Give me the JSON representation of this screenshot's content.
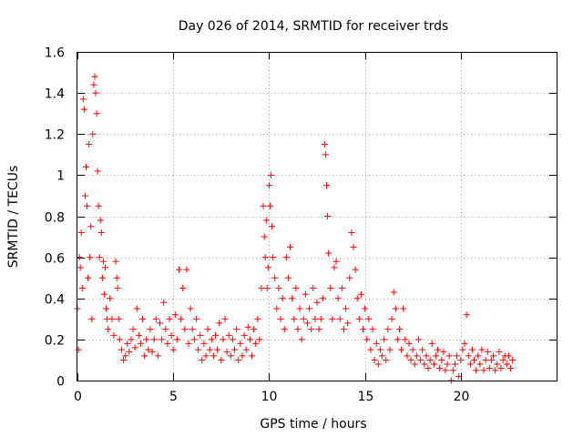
{
  "chart_data": {
    "type": "scatter",
    "title": "Day 026 of 2014, SRMTID for receiver trds",
    "xlabel": "GPS time / hours",
    "ylabel": "SRMTID / TECUs",
    "xlim": [
      0,
      25
    ],
    "ylim": [
      0,
      1.6
    ],
    "xticks": [
      {
        "value": 0,
        "label": "0"
      },
      {
        "value": 5,
        "label": "5"
      },
      {
        "value": 10,
        "label": "10"
      },
      {
        "value": 15,
        "label": "15"
      },
      {
        "value": 20,
        "label": "20"
      }
    ],
    "yticks": [
      {
        "value": 0,
        "label": "0"
      },
      {
        "value": 0.2,
        "label": "0.2"
      },
      {
        "value": 0.4,
        "label": "0.4"
      },
      {
        "value": 0.6,
        "label": "0.6"
      },
      {
        "value": 0.8,
        "label": "0.8"
      },
      {
        "value": 1.0,
        "label": "1"
      },
      {
        "value": 1.2,
        "label": "1.2"
      },
      {
        "value": 1.4,
        "label": "1.4"
      },
      {
        "value": 1.6,
        "label": "1.6"
      }
    ],
    "grid": true,
    "series": [
      {
        "name": "SRMTID",
        "marker": "+",
        "color": "#ff0000",
        "points": [
          [
            0.0,
            0.35
          ],
          [
            0.05,
            0.15
          ],
          [
            0.1,
            0.6
          ],
          [
            0.15,
            0.55
          ],
          [
            0.2,
            0.72
          ],
          [
            0.25,
            0.45
          ],
          [
            0.3,
            1.37
          ],
          [
            0.35,
            1.32
          ],
          [
            0.4,
            0.9
          ],
          [
            0.45,
            1.04
          ],
          [
            0.5,
            0.85
          ],
          [
            0.55,
            0.5
          ],
          [
            0.6,
            1.15
          ],
          [
            0.65,
            0.6
          ],
          [
            0.7,
            0.75
          ],
          [
            0.75,
            0.3
          ],
          [
            0.8,
            1.2
          ],
          [
            0.85,
            1.44
          ],
          [
            0.9,
            1.48
          ],
          [
            0.95,
            1.4
          ],
          [
            1.0,
            1.3
          ],
          [
            1.05,
            1.02
          ],
          [
            1.1,
            0.85
          ],
          [
            1.15,
            0.6
          ],
          [
            1.2,
            0.78
          ],
          [
            1.25,
            0.72
          ],
          [
            1.3,
            0.5
          ],
          [
            1.35,
            0.58
          ],
          [
            1.4,
            0.42
          ],
          [
            1.45,
            0.55
          ],
          [
            1.5,
            0.35
          ],
          [
            1.55,
            0.3
          ],
          [
            1.6,
            0.25
          ],
          [
            1.7,
            0.4
          ],
          [
            1.8,
            0.3
          ],
          [
            1.9,
            0.22
          ],
          [
            2.0,
            0.58
          ],
          [
            2.05,
            0.5
          ],
          [
            2.1,
            0.45
          ],
          [
            2.15,
            0.3
          ],
          [
            2.2,
            0.2
          ],
          [
            2.3,
            0.15
          ],
          [
            2.4,
            0.1
          ],
          [
            2.5,
            0.12
          ],
          [
            2.6,
            0.18
          ],
          [
            2.7,
            0.14
          ],
          [
            2.8,
            0.2
          ],
          [
            2.9,
            0.25
          ],
          [
            3.0,
            0.16
          ],
          [
            3.1,
            0.35
          ],
          [
            3.2,
            0.22
          ],
          [
            3.3,
            0.18
          ],
          [
            3.4,
            0.3
          ],
          [
            3.5,
            0.12
          ],
          [
            3.6,
            0.2
          ],
          [
            3.7,
            0.15
          ],
          [
            3.8,
            0.25
          ],
          [
            3.9,
            0.14
          ],
          [
            4.0,
            0.2
          ],
          [
            4.1,
            0.3
          ],
          [
            4.2,
            0.12
          ],
          [
            4.3,
            0.28
          ],
          [
            4.4,
            0.2
          ],
          [
            4.5,
            0.38
          ],
          [
            4.6,
            0.25
          ],
          [
            4.7,
            0.18
          ],
          [
            4.8,
            0.3
          ],
          [
            4.9,
            0.22
          ],
          [
            5.0,
            0.15
          ],
          [
            5.1,
            0.32
          ],
          [
            5.2,
            0.2
          ],
          [
            5.3,
            0.54
          ],
          [
            5.4,
            0.3
          ],
          [
            5.5,
            0.45
          ],
          [
            5.6,
            0.25
          ],
          [
            5.7,
            0.54
          ],
          [
            5.8,
            0.18
          ],
          [
            5.9,
            0.35
          ],
          [
            6.0,
            0.25
          ],
          [
            6.1,
            0.2
          ],
          [
            6.2,
            0.3
          ],
          [
            6.3,
            0.15
          ],
          [
            6.4,
            0.22
          ],
          [
            6.5,
            0.1
          ],
          [
            6.6,
            0.18
          ],
          [
            6.7,
            0.12
          ],
          [
            6.8,
            0.25
          ],
          [
            6.9,
            0.15
          ],
          [
            7.0,
            0.2
          ],
          [
            7.1,
            0.12
          ],
          [
            7.2,
            0.22
          ],
          [
            7.3,
            0.15
          ],
          [
            7.4,
            0.28
          ],
          [
            7.5,
            0.1
          ],
          [
            7.6,
            0.2
          ],
          [
            7.7,
            0.3
          ],
          [
            7.8,
            0.14
          ],
          [
            7.9,
            0.22
          ],
          [
            8.0,
            0.12
          ],
          [
            8.1,
            0.2
          ],
          [
            8.2,
            0.15
          ],
          [
            8.3,
            0.25
          ],
          [
            8.4,
            0.1
          ],
          [
            8.5,
            0.18
          ],
          [
            8.6,
            0.12
          ],
          [
            8.7,
            0.22
          ],
          [
            8.8,
            0.15
          ],
          [
            8.9,
            0.26
          ],
          [
            9.0,
            0.2
          ],
          [
            9.1,
            0.12
          ],
          [
            9.2,
            0.25
          ],
          [
            9.3,
            0.18
          ],
          [
            9.4,
            0.3
          ],
          [
            9.5,
            0.2
          ],
          [
            9.6,
            0.45
          ],
          [
            9.7,
            0.85
          ],
          [
            9.75,
            0.7
          ],
          [
            9.8,
            0.6
          ],
          [
            9.85,
            0.78
          ],
          [
            9.9,
            0.45
          ],
          [
            9.95,
            0.55
          ],
          [
            10.0,
            0.95
          ],
          [
            10.05,
            0.85
          ],
          [
            10.1,
            1.0
          ],
          [
            10.15,
            0.75
          ],
          [
            10.2,
            0.6
          ],
          [
            10.3,
            0.5
          ],
          [
            10.4,
            0.35
          ],
          [
            10.5,
            0.45
          ],
          [
            10.6,
            0.3
          ],
          [
            10.7,
            0.4
          ],
          [
            10.8,
            0.25
          ],
          [
            10.9,
            0.6
          ],
          [
            11.0,
            0.5
          ],
          [
            11.1,
            0.65
          ],
          [
            11.2,
            0.4
          ],
          [
            11.3,
            0.3
          ],
          [
            11.4,
            0.45
          ],
          [
            11.5,
            0.25
          ],
          [
            11.6,
            0.35
          ],
          [
            11.7,
            0.2
          ],
          [
            11.8,
            0.3
          ],
          [
            11.9,
            0.42
          ],
          [
            12.0,
            0.28
          ],
          [
            12.1,
            0.35
          ],
          [
            12.2,
            0.25
          ],
          [
            12.3,
            0.45
          ],
          [
            12.4,
            0.3
          ],
          [
            12.5,
            0.38
          ],
          [
            12.6,
            0.25
          ],
          [
            12.7,
            0.3
          ],
          [
            12.8,
            0.4
          ],
          [
            12.9,
            1.15
          ],
          [
            12.95,
            1.1
          ],
          [
            13.0,
            0.95
          ],
          [
            13.05,
            0.8
          ],
          [
            13.1,
            0.62
          ],
          [
            13.2,
            0.45
          ],
          [
            13.3,
            0.3
          ],
          [
            13.4,
            0.55
          ],
          [
            13.5,
            0.58
          ],
          [
            13.6,
            0.4
          ],
          [
            13.7,
            0.3
          ],
          [
            13.8,
            0.45
          ],
          [
            13.9,
            0.25
          ],
          [
            14.0,
            0.35
          ],
          [
            14.1,
            0.28
          ],
          [
            14.2,
            0.5
          ],
          [
            14.3,
            0.72
          ],
          [
            14.4,
            0.65
          ],
          [
            14.5,
            0.54
          ],
          [
            14.6,
            0.4
          ],
          [
            14.7,
            0.3
          ],
          [
            14.8,
            0.42
          ],
          [
            14.9,
            0.25
          ],
          [
            15.0,
            0.35
          ],
          [
            15.1,
            0.2
          ],
          [
            15.2,
            0.3
          ],
          [
            15.3,
            0.15
          ],
          [
            15.4,
            0.25
          ],
          [
            15.5,
            0.1
          ],
          [
            15.6,
            0.18
          ],
          [
            15.7,
            0.08
          ],
          [
            15.8,
            0.15
          ],
          [
            15.9,
            0.12
          ],
          [
            16.0,
            0.2
          ],
          [
            16.1,
            0.1
          ],
          [
            16.2,
            0.25
          ],
          [
            16.3,
            0.15
          ],
          [
            16.4,
            0.3
          ],
          [
            16.5,
            0.43
          ],
          [
            16.6,
            0.35
          ],
          [
            16.7,
            0.2
          ],
          [
            16.8,
            0.25
          ],
          [
            16.9,
            0.15
          ],
          [
            17.0,
            0.35
          ],
          [
            17.1,
            0.2
          ],
          [
            17.2,
            0.12
          ],
          [
            17.3,
            0.18
          ],
          [
            17.4,
            0.1
          ],
          [
            17.5,
            0.15
          ],
          [
            17.6,
            0.08
          ],
          [
            17.7,
            0.12
          ],
          [
            17.8,
            0.2
          ],
          [
            17.9,
            0.1
          ],
          [
            18.0,
            0.15
          ],
          [
            18.1,
            0.08
          ],
          [
            18.2,
            0.12
          ],
          [
            18.3,
            0.06
          ],
          [
            18.4,
            0.1
          ],
          [
            18.5,
            0.18
          ],
          [
            18.6,
            0.08
          ],
          [
            18.7,
            0.12
          ],
          [
            18.8,
            0.15
          ],
          [
            18.9,
            0.06
          ],
          [
            19.0,
            0.1
          ],
          [
            19.1,
            0.14
          ],
          [
            19.2,
            0.05
          ],
          [
            19.3,
            0.08
          ],
          [
            19.4,
            0.12
          ],
          [
            19.5,
            0.0
          ],
          [
            19.6,
            0.05
          ],
          [
            19.7,
            0.08
          ],
          [
            19.8,
            0.12
          ],
          [
            19.9,
            0.02
          ],
          [
            20.0,
            0.1
          ],
          [
            20.1,
            0.15
          ],
          [
            20.2,
            0.18
          ],
          [
            20.3,
            0.32
          ],
          [
            20.4,
            0.12
          ],
          [
            20.5,
            0.08
          ],
          [
            20.6,
            0.15
          ],
          [
            20.7,
            0.1
          ],
          [
            20.8,
            0.05
          ],
          [
            20.9,
            0.12
          ],
          [
            21.0,
            0.08
          ],
          [
            21.1,
            0.15
          ],
          [
            21.2,
            0.05
          ],
          [
            21.3,
            0.1
          ],
          [
            21.4,
            0.14
          ],
          [
            21.5,
            0.06
          ],
          [
            21.6,
            0.1
          ],
          [
            21.7,
            0.12
          ],
          [
            21.8,
            0.05
          ],
          [
            21.9,
            0.08
          ],
          [
            22.0,
            0.14
          ],
          [
            22.1,
            0.06
          ],
          [
            22.2,
            0.1
          ],
          [
            22.3,
            0.12
          ],
          [
            22.4,
            0.08
          ],
          [
            22.5,
            0.12
          ],
          [
            22.6,
            0.06
          ],
          [
            22.7,
            0.1
          ]
        ]
      }
    ]
  }
}
